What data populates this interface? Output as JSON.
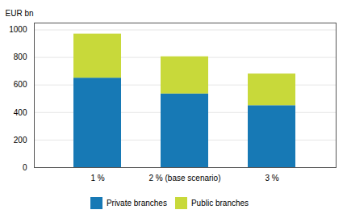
{
  "chart_data": {
    "type": "bar",
    "stacked": true,
    "categories": [
      "1 %",
      "2 % (base scenario)",
      "3 %"
    ],
    "series": [
      {
        "name": "Private branches",
        "color": "#1779b5",
        "values": [
          650,
          535,
          450
        ]
      },
      {
        "name": "Public branches",
        "color": "#c8d93a",
        "values": [
          320,
          270,
          230
        ]
      }
    ],
    "ylabel": "EUR bn",
    "ylim": [
      0,
      1050
    ],
    "yticks": [
      0,
      200,
      400,
      600,
      800,
      1000
    ],
    "grid": true,
    "legend": "bottom"
  }
}
